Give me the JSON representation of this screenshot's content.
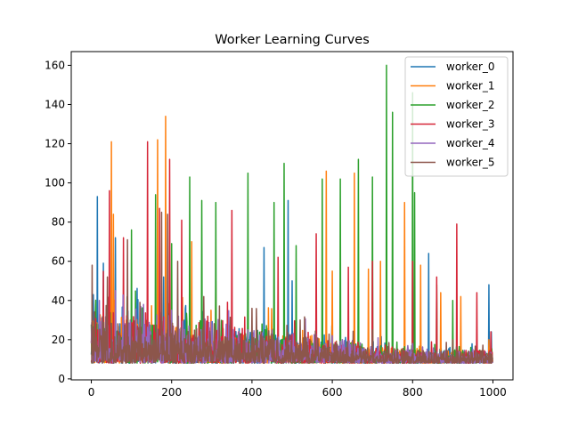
{
  "chart_data": {
    "type": "line",
    "title": "Worker Learning Curves",
    "xlabel": "",
    "ylabel": "",
    "xlim": [
      -50,
      1050
    ],
    "ylim": [
      -0.5,
      167
    ],
    "xticks": [
      0,
      200,
      400,
      600,
      800,
      1000
    ],
    "yticks": [
      0,
      20,
      40,
      60,
      80,
      100,
      120,
      140,
      160
    ],
    "grid": false,
    "legend_position": "top-right",
    "n_points": 1000,
    "series": [
      {
        "name": "worker_0",
        "color": "#1f77b4",
        "peaks": [
          [
            15,
            93
          ],
          [
            30,
            59
          ],
          [
            60,
            72
          ],
          [
            180,
            52
          ],
          [
            245,
            40
          ],
          [
            430,
            67
          ],
          [
            490,
            91
          ],
          [
            500,
            50
          ],
          [
            840,
            64
          ],
          [
            990,
            48
          ],
          [
            996,
            24
          ]
        ]
      },
      {
        "name": "worker_1",
        "color": "#ff7f0e",
        "peaks": [
          [
            50,
            121
          ],
          [
            55,
            84
          ],
          [
            165,
            122
          ],
          [
            185,
            134
          ],
          [
            250,
            70
          ],
          [
            310,
            50
          ],
          [
            585,
            106
          ],
          [
            600,
            55
          ],
          [
            655,
            105
          ],
          [
            690,
            56
          ],
          [
            720,
            60
          ],
          [
            780,
            90
          ],
          [
            820,
            58
          ],
          [
            870,
            44
          ],
          [
            920,
            42
          ],
          [
            990,
            20
          ]
        ]
      },
      {
        "name": "worker_2",
        "color": "#2ca02c",
        "peaks": [
          [
            100,
            76
          ],
          [
            160,
            94
          ],
          [
            200,
            69
          ],
          [
            245,
            103
          ],
          [
            275,
            91
          ],
          [
            310,
            90
          ],
          [
            390,
            105
          ],
          [
            455,
            90
          ],
          [
            480,
            110
          ],
          [
            510,
            68
          ],
          [
            575,
            102
          ],
          [
            620,
            102
          ],
          [
            665,
            112
          ],
          [
            700,
            103
          ],
          [
            735,
            160
          ],
          [
            750,
            136
          ],
          [
            800,
            146
          ],
          [
            805,
            95
          ],
          [
            860,
            48
          ],
          [
            900,
            40
          ]
        ]
      },
      {
        "name": "worker_3",
        "color": "#d62738",
        "peaks": [
          [
            45,
            96
          ],
          [
            80,
            72
          ],
          [
            140,
            121
          ],
          [
            170,
            87
          ],
          [
            195,
            112
          ],
          [
            225,
            81
          ],
          [
            350,
            86
          ],
          [
            465,
            62
          ],
          [
            560,
            74
          ],
          [
            640,
            57
          ],
          [
            700,
            60
          ],
          [
            800,
            60
          ],
          [
            860,
            52
          ],
          [
            910,
            79
          ],
          [
            960,
            44
          ],
          [
            995,
            24
          ]
        ]
      },
      {
        "name": "worker_4",
        "color": "#9467bd",
        "peaks": [
          [
            20,
            40
          ],
          [
            60,
            45
          ],
          [
            130,
            38
          ],
          [
            200,
            35
          ],
          [
            300,
            28
          ],
          [
            450,
            25
          ],
          [
            600,
            22
          ],
          [
            800,
            18
          ],
          [
            950,
            15
          ]
        ]
      },
      {
        "name": "worker_5",
        "color": "#8c564b",
        "peaks": [
          [
            2,
            58
          ],
          [
            40,
            52
          ],
          [
            90,
            71
          ],
          [
            175,
            85
          ],
          [
            190,
            84
          ],
          [
            215,
            60
          ],
          [
            280,
            42
          ],
          [
            400,
            36
          ],
          [
            520,
            30
          ],
          [
            700,
            25
          ],
          [
            900,
            20
          ]
        ]
      }
    ]
  }
}
